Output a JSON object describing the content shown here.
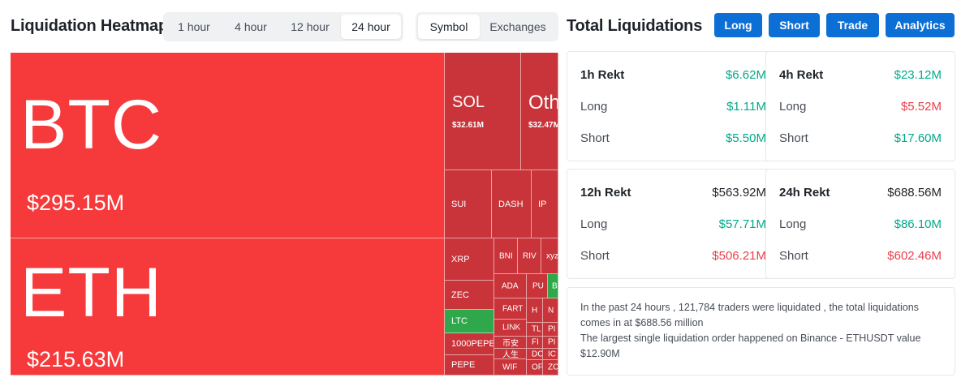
{
  "header": {
    "title": "Liquidation Heatmap",
    "time_tabs": [
      "1 hour",
      "4 hour",
      "12 hour",
      "24 hour"
    ],
    "active_time_tab": "24 hour",
    "view_tabs": [
      "Symbol",
      "Exchanges"
    ],
    "active_view_tab": "Symbol"
  },
  "right_header": {
    "title": "Total Liquidations",
    "buttons": [
      "Long",
      "Short",
      "Trade",
      "Analytics"
    ],
    "button_color": "#0b6fd6"
  },
  "heatmap": {
    "colors": {
      "long_dominant": "#f6393a",
      "mixed": "#c8343a",
      "short_dominant": "#2fa84b"
    },
    "big": [
      {
        "symbol": "BTC",
        "value": "$295.15M"
      },
      {
        "symbol": "ETH",
        "value": "$215.63M"
      }
    ],
    "mid": [
      {
        "symbol": "SOL",
        "value": "$32.61M"
      },
      {
        "symbol": "Oth",
        "value": "$32.47M"
      }
    ],
    "small": {
      "sui": "SUI",
      "dash": "DASH",
      "ip": "IP",
      "xrp": "XRP",
      "bnb": "BNI",
      "riv": "RIV",
      "xyz": "xyz",
      "zec": "ZEC",
      "ada": "ADA",
      "pu": "PU",
      "b": "B",
      "ltc": "LTC",
      "fart": "FART",
      "h": "H",
      "n": "N",
      "link": "LINK",
      "tl": "TL",
      "pu2": "PI",
      "pepe1000": "1000PEPE",
      "bian": "币安",
      "fi": "FI",
      "p3": "PI",
      "rensheng": "人生",
      "dc": "DC",
      "ic": "IC",
      "pepe": "PEPE",
      "wif": "WIF",
      "or": "OF",
      "zc": "ZC"
    }
  },
  "stats": [
    {
      "label": "1h Rekt",
      "total": "$6.62M",
      "long": "$1.11M",
      "short": "$5.50M"
    },
    {
      "label": "4h Rekt",
      "total": "$23.12M",
      "long": "$5.52M",
      "short": "$17.60M"
    },
    {
      "label": "12h Rekt",
      "total": "$563.92M",
      "long": "$57.71M",
      "short": "$506.21M"
    },
    {
      "label": "24h Rekt",
      "total": "$688.56M",
      "long": "$86.10M",
      "short": "$602.46M"
    }
  ],
  "stat_row_labels": {
    "long": "Long",
    "short": "Short"
  },
  "summary": {
    "line1": "In the past 24 hours , 121,784 traders were liquidated , the total liquidations comes in at $688.56 million",
    "line2": "The largest single liquidation order happened on Binance - ETHUSDT value $12.90M"
  }
}
